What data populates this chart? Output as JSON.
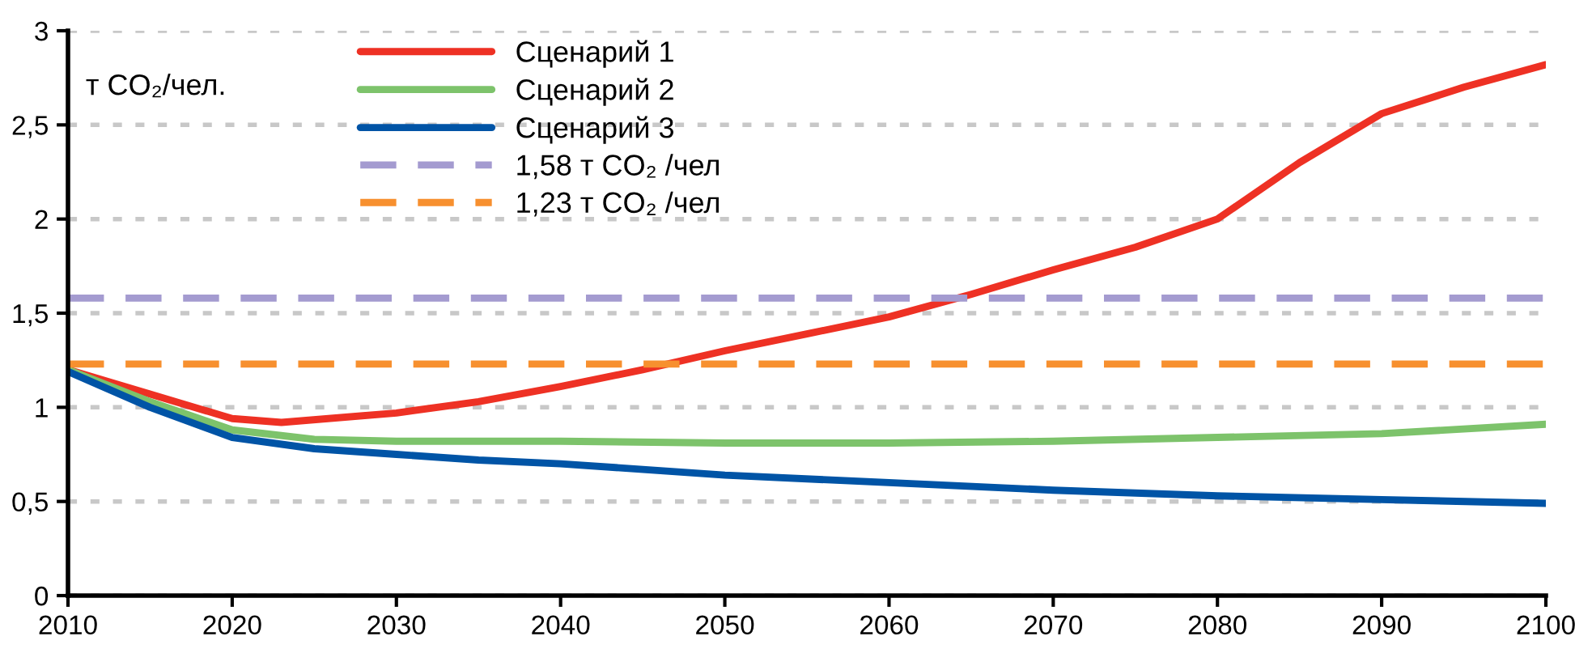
{
  "chart_data": {
    "type": "line",
    "ylabel": "т CO₂/чел.",
    "xlim": [
      2010,
      2100
    ],
    "xticks": [
      2010,
      2020,
      2030,
      2040,
      2050,
      2060,
      2070,
      2080,
      2090,
      2100
    ],
    "ylim": [
      0,
      3
    ],
    "yticks": [
      0,
      {
        "value": 0.5,
        "label": "0,5"
      },
      1,
      {
        "value": 1.5,
        "label": "1,5"
      },
      2,
      {
        "value": 2.5,
        "label": "2,5"
      },
      3
    ],
    "grid": "y",
    "legend": "top",
    "line_style": "solid",
    "marker": "none",
    "series": [
      {
        "name": "Сценарий 1",
        "color": "#ee3124",
        "x": [
          2010,
          2015,
          2020,
          2023,
          2030,
          2035,
          2040,
          2045,
          2050,
          2055,
          2060,
          2065,
          2070,
          2075,
          2080,
          2085,
          2090,
          2095,
          2100
        ],
        "values": [
          1.2,
          1.07,
          0.94,
          0.92,
          0.97,
          1.03,
          1.11,
          1.2,
          1.3,
          1.39,
          1.48,
          1.6,
          1.73,
          1.85,
          2.0,
          2.3,
          2.56,
          2.7,
          2.82
        ]
      },
      {
        "name": "Сценарий 2",
        "color": "#7dc36b",
        "x": [
          2010,
          2015,
          2020,
          2025,
          2030,
          2040,
          2050,
          2060,
          2070,
          2080,
          2090,
          2100
        ],
        "values": [
          1.2,
          1.03,
          0.88,
          0.83,
          0.82,
          0.82,
          0.81,
          0.81,
          0.82,
          0.84,
          0.86,
          0.91
        ]
      },
      {
        "name": "Сценарий 3",
        "color": "#0054a6",
        "x": [
          2010,
          2015,
          2020,
          2025,
          2030,
          2035,
          2040,
          2050,
          2060,
          2070,
          2080,
          2090,
          2100
        ],
        "values": [
          1.19,
          1.0,
          0.84,
          0.78,
          0.75,
          0.72,
          0.7,
          0.64,
          0.6,
          0.56,
          0.53,
          0.51,
          0.49
        ]
      },
      {
        "name": "1,58 т CO₂ /чел",
        "color": "#a49bd0",
        "line_style": "dashed",
        "x": [
          2010,
          2100
        ],
        "values": [
          1.58,
          1.58
        ]
      },
      {
        "name": "1,23 т CO₂ /чел",
        "color": "#f7902f",
        "line_style": "dashed",
        "x": [
          2010,
          2100
        ],
        "values": [
          1.23,
          1.23
        ]
      }
    ]
  }
}
